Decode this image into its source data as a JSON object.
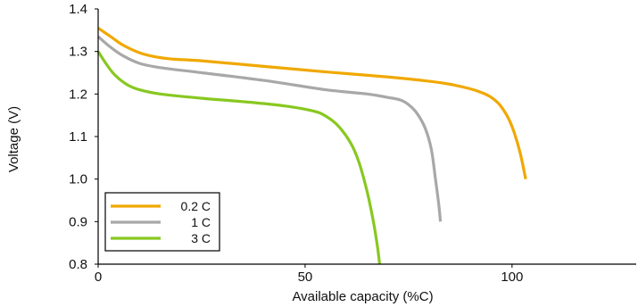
{
  "chart_data": {
    "type": "line",
    "title": "",
    "xlabel": "Available capacity (%C)",
    "ylabel": "Voltage (V)",
    "xlim": [
      0,
      130
    ],
    "ylim": [
      0.8,
      1.4
    ],
    "x_ticks": [
      0,
      50,
      100
    ],
    "y_ticks": [
      0.8,
      0.9,
      1.0,
      1.1,
      1.2,
      1.3,
      1.4
    ],
    "x_tick_labels": [
      "0",
      "50",
      "100"
    ],
    "y_tick_labels": [
      "0.8",
      "0.9",
      "1.0",
      "1.1",
      "1.2",
      "1.3",
      "1.4"
    ],
    "grid": false,
    "legend_position": "bottom-left",
    "series": [
      {
        "name": "0.2 C",
        "color": "#f0a800",
        "points": [
          [
            0,
            1.355
          ],
          [
            3,
            1.335
          ],
          [
            6,
            1.315
          ],
          [
            10,
            1.297
          ],
          [
            14,
            1.287
          ],
          [
            18,
            1.282
          ],
          [
            25,
            1.278
          ],
          [
            40,
            1.265
          ],
          [
            55,
            1.252
          ],
          [
            70,
            1.24
          ],
          [
            80,
            1.23
          ],
          [
            85,
            1.223
          ],
          [
            90,
            1.212
          ],
          [
            93,
            1.202
          ],
          [
            95,
            1.192
          ],
          [
            97,
            1.175
          ],
          [
            99,
            1.145
          ],
          [
            100.5,
            1.11
          ],
          [
            102,
            1.06
          ],
          [
            103.3,
            1.0
          ]
        ]
      },
      {
        "name": "1 C",
        "color": "#a8a8a8",
        "points": [
          [
            0,
            1.335
          ],
          [
            3,
            1.31
          ],
          [
            6,
            1.29
          ],
          [
            10,
            1.272
          ],
          [
            15,
            1.262
          ],
          [
            25,
            1.25
          ],
          [
            40,
            1.232
          ],
          [
            55,
            1.21
          ],
          [
            65,
            1.2
          ],
          [
            70,
            1.192
          ],
          [
            73,
            1.186
          ],
          [
            75,
            1.175
          ],
          [
            77,
            1.155
          ],
          [
            79,
            1.12
          ],
          [
            80.5,
            1.07
          ],
          [
            81.5,
            1.0
          ],
          [
            82.3,
            0.94
          ],
          [
            82.7,
            0.9
          ]
        ]
      },
      {
        "name": "3 C",
        "color": "#88c820",
        "points": [
          [
            0,
            1.3
          ],
          [
            2,
            1.27
          ],
          [
            4,
            1.245
          ],
          [
            7,
            1.222
          ],
          [
            10,
            1.21
          ],
          [
            15,
            1.2
          ],
          [
            25,
            1.19
          ],
          [
            35,
            1.182
          ],
          [
            45,
            1.172
          ],
          [
            52,
            1.16
          ],
          [
            55,
            1.148
          ],
          [
            58,
            1.125
          ],
          [
            61,
            1.085
          ],
          [
            63,
            1.04
          ],
          [
            65,
            0.97
          ],
          [
            66.5,
            0.9
          ],
          [
            67.5,
            0.84
          ],
          [
            68,
            0.8
          ]
        ]
      }
    ]
  }
}
